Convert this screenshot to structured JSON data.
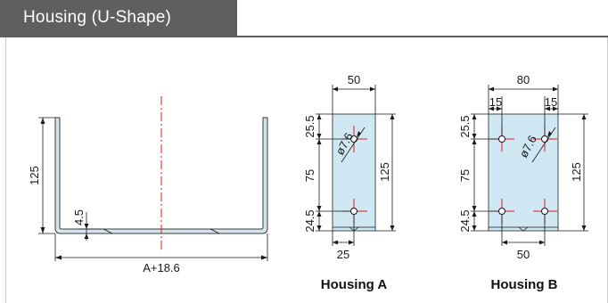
{
  "header": {
    "title": "Housing (U-Shape)"
  },
  "colors": {
    "header_bg": "#5f5f5f",
    "plate_fill": "#cfe8f4",
    "profile_fill": "#d4e4ec",
    "centerline": "#e01818",
    "dimension": "#1a1a1a"
  },
  "side_view": {
    "height_label": "125",
    "thickness_label": "4.5",
    "width_label": "A+18.6"
  },
  "housing_a": {
    "caption": "Housing A",
    "width_label": "50",
    "hole_label": "ø7.6",
    "top_label": "25.5",
    "mid_label": "75",
    "bottom_label": "24.5",
    "height_label": "125",
    "hole_offset_label": "25"
  },
  "housing_b": {
    "caption": "Housing B",
    "width_label": "80",
    "left_margin_label": "15",
    "right_margin_label": "15",
    "hole_label": "ø7.6",
    "top_label": "25.5",
    "mid_label": "75",
    "bottom_label": "24.5",
    "height_label": "125",
    "hole_spacing_label": "50"
  }
}
